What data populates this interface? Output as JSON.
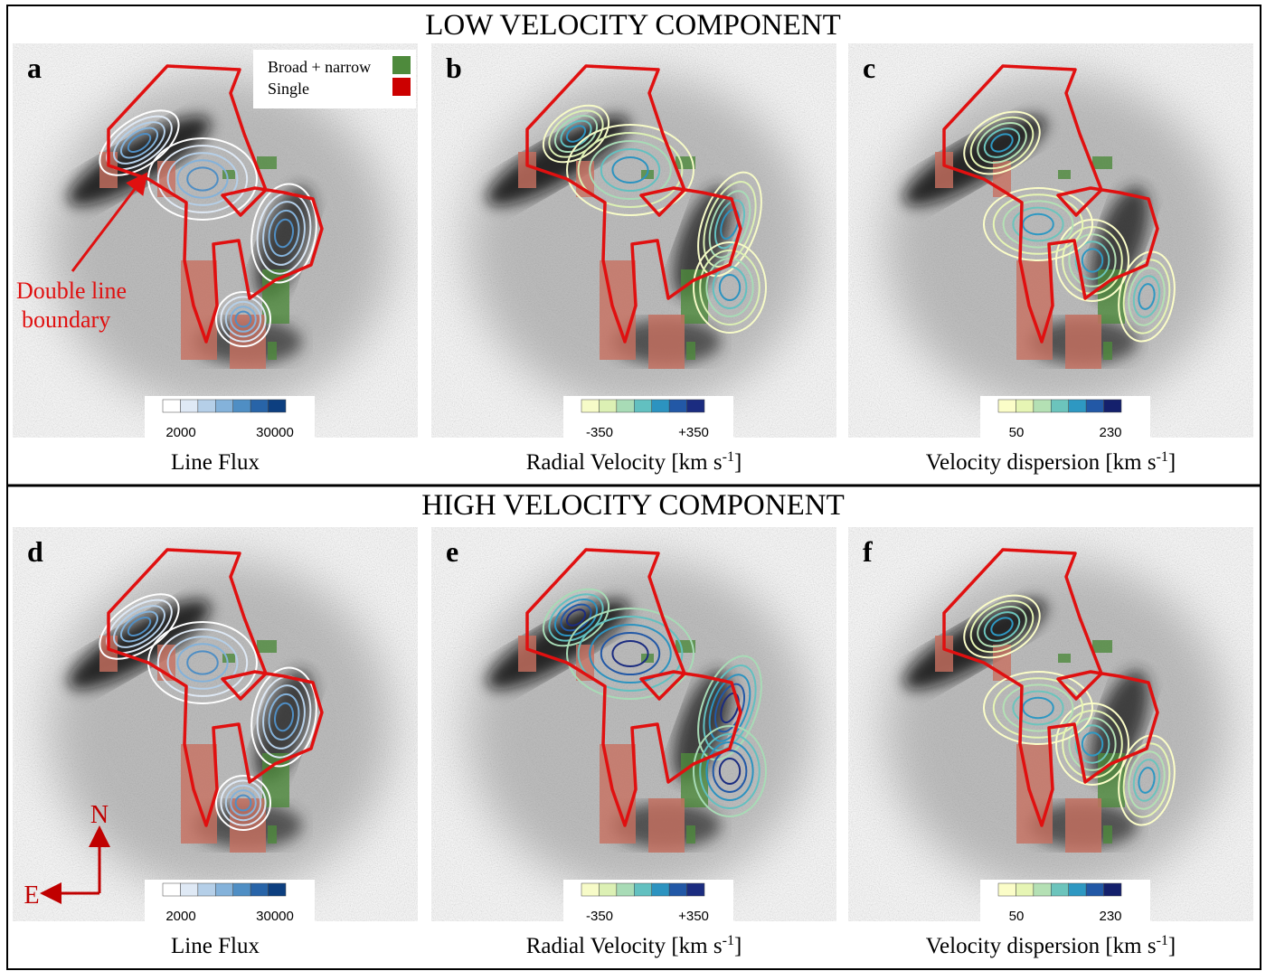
{
  "sections": [
    {
      "title": "LOW  VELOCITY  COMPONENT",
      "panels": [
        {
          "letter": "a",
          "colorbar": {
            "min": "2000",
            "max": "30000",
            "colors": [
              "#ffffff",
              "#dfe9f5",
              "#b5cfe8",
              "#84b2da",
              "#4f8ec4",
              "#2864a8",
              "#0d3f80"
            ]
          },
          "caption": {
            "text": "Line Flux"
          }
        },
        {
          "letter": "b",
          "colorbar": {
            "min": "-350",
            "max": "+350",
            "colors": [
              "#f7fbc8",
              "#dcf0b4",
              "#a8dbb6",
              "#62c0c0",
              "#2c93c0",
              "#2258a6",
              "#1b2c80"
            ]
          },
          "caption": {
            "text": "Radial Velocity [km s",
            "sup": "-1",
            "end": "]"
          }
        },
        {
          "letter": "c",
          "colorbar": {
            "min": "50",
            "max": "230",
            "colors": [
              "#fbfdc8",
              "#e6f5b4",
              "#b4e0b4",
              "#6cc4bc",
              "#2e98c2",
              "#2258a6",
              "#14206c"
            ]
          },
          "caption": {
            "text": "Velocity dispersion [km s",
            "sup": "-1",
            "end": "]"
          }
        }
      ]
    },
    {
      "title": "HIGH  VELOCITY  COMPONENT",
      "panels": [
        {
          "letter": "d",
          "colorbar": {
            "min": "2000",
            "max": "30000",
            "colors": [
              "#ffffff",
              "#dfe9f5",
              "#b5cfe8",
              "#84b2da",
              "#4f8ec4",
              "#2864a8",
              "#0d3f80"
            ]
          },
          "caption": {
            "text": "Line Flux"
          }
        },
        {
          "letter": "e",
          "colorbar": {
            "min": "-350",
            "max": "+350",
            "colors": [
              "#f7fbc8",
              "#dcf0b4",
              "#a8dbb6",
              "#62c0c0",
              "#2c93c0",
              "#2258a6",
              "#1b2c80"
            ]
          },
          "caption": {
            "text": "Radial Velocity [km s",
            "sup": "-1",
            "end": "]"
          }
        },
        {
          "letter": "f",
          "colorbar": {
            "min": "50",
            "max": "230",
            "colors": [
              "#fbfdc8",
              "#e6f5b4",
              "#b4e0b4",
              "#6cc4bc",
              "#2e98c2",
              "#2258a6",
              "#14206c"
            ]
          },
          "caption": {
            "text": "Velocity dispersion [km s",
            "sup": "-1",
            "end": "]"
          }
        }
      ]
    }
  ],
  "legend": [
    {
      "label": "Broad + narrow",
      "color": "#4e8a3c"
    },
    {
      "label": "Single",
      "color": "#cc0000"
    }
  ],
  "annotation": {
    "lines": [
      "Double line",
      "boundary"
    ]
  },
  "compass": {
    "north": "N",
    "east": "E"
  }
}
